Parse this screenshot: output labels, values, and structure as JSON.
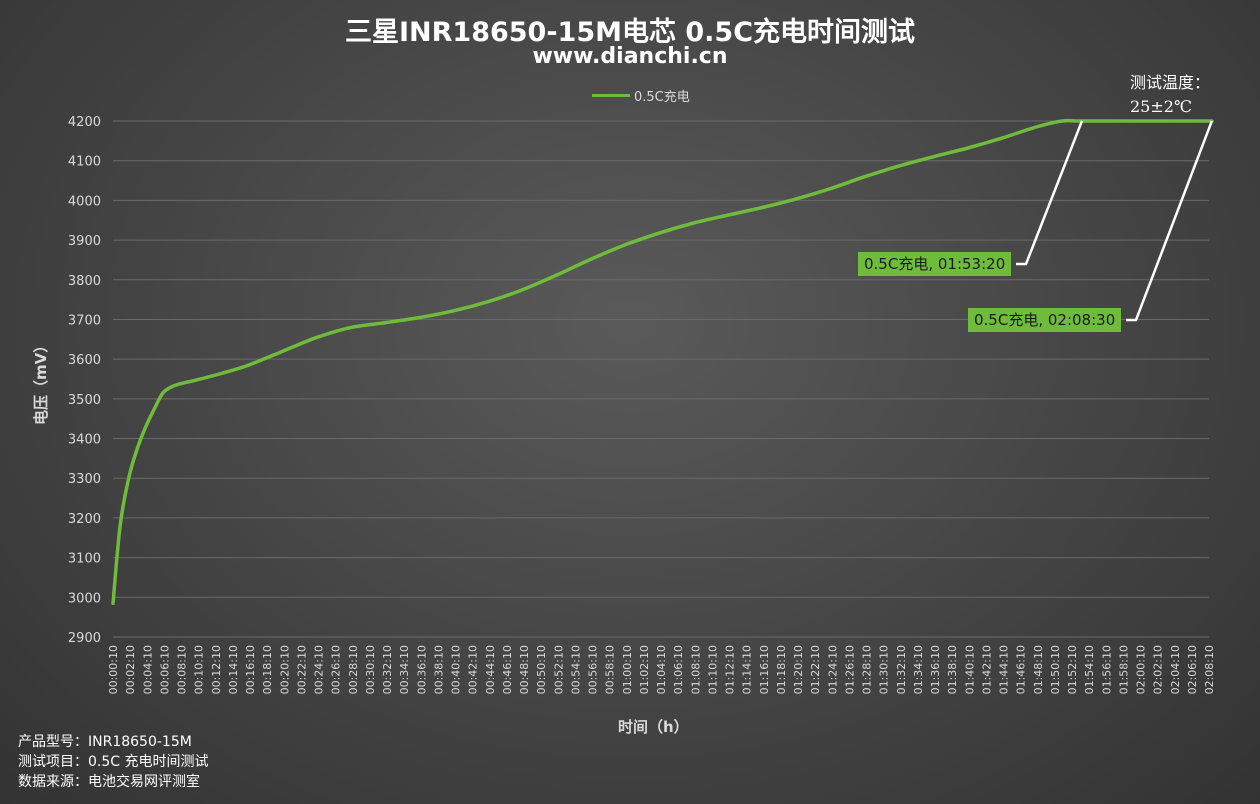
{
  "title": "三星INR18650-15M电芯 0.5C充电时间测试",
  "subtitle": "www.dianchi.cn",
  "legend_label": "0.5C充电",
  "temperature": {
    "line1": "测试温度：",
    "line2": "25±2℃"
  },
  "callouts": [
    "0.5C充电, 01:53:20",
    "0.5C充电, 02:08:30"
  ],
  "footer": {
    "line1": "产品型号：INR18650-15M",
    "line2": "测试项目：0.5C 充电时间测试",
    "line3": "数据来源：电池交易网评测室"
  },
  "colors": {
    "series": "#6fbc3c",
    "grid": "#6a6a6a",
    "connector": "#ffffff"
  },
  "chart_data": {
    "type": "line",
    "title": "三星INR18650-15M电芯 0.5C充电时间测试",
    "xlabel": "时间（h）",
    "ylabel": "电压（mV）",
    "ylim": [
      2900,
      4200
    ],
    "yticks": [
      2900,
      3000,
      3100,
      3200,
      3300,
      3400,
      3500,
      3600,
      3700,
      3800,
      3900,
      4000,
      4100,
      4200
    ],
    "xtick_labels": [
      "00:00:10",
      "00:02:10",
      "00:04:10",
      "00:06:10",
      "00:08:10",
      "00:10:10",
      "00:12:10",
      "00:14:10",
      "00:16:10",
      "00:18:10",
      "00:20:10",
      "00:22:10",
      "00:24:10",
      "00:26:10",
      "00:28:10",
      "00:30:10",
      "00:32:10",
      "00:34:10",
      "00:36:10",
      "00:38:10",
      "00:40:10",
      "00:42:10",
      "00:44:10",
      "00:46:10",
      "00:48:10",
      "00:50:10",
      "00:52:10",
      "00:54:10",
      "00:56:10",
      "00:58:10",
      "01:00:10",
      "01:02:10",
      "01:04:10",
      "01:06:10",
      "01:08:10",
      "01:10:10",
      "01:12:10",
      "01:14:10",
      "01:16:10",
      "01:18:10",
      "01:20:10",
      "01:22:10",
      "01:24:10",
      "01:26:10",
      "01:28:10",
      "01:30:10",
      "01:32:10",
      "01:34:10",
      "01:36:10",
      "01:38:10",
      "01:40:10",
      "01:42:10",
      "01:44:10",
      "01:46:10",
      "01:48:10",
      "01:50:10",
      "01:52:10",
      "01:54:10",
      "01:56:10",
      "01:58:10",
      "02:00:10",
      "02:02:10",
      "02:04:10",
      "02:06:10",
      "02:08:10"
    ],
    "legend_position": "top",
    "grid": true,
    "series": [
      {
        "name": "0.5C充电",
        "x_min": [
          0.17,
          1,
          2,
          3,
          4,
          5,
          6,
          7,
          8,
          10,
          13,
          16,
          20,
          24,
          28,
          32,
          36,
          40,
          44,
          48,
          52,
          56,
          60,
          64,
          68,
          72,
          76,
          80,
          84,
          88,
          92,
          96,
          100,
          104,
          108,
          111,
          113.33,
          120,
          128.5
        ],
        "y_mV": [
          2985,
          3180,
          3300,
          3375,
          3430,
          3475,
          3515,
          3530,
          3538,
          3548,
          3565,
          3585,
          3620,
          3655,
          3680,
          3692,
          3705,
          3722,
          3745,
          3775,
          3812,
          3852,
          3888,
          3918,
          3943,
          3963,
          3982,
          4004,
          4030,
          4060,
          4087,
          4110,
          4132,
          4157,
          4185,
          4200,
          4200,
          4200,
          4200
        ]
      }
    ],
    "annotations": [
      {
        "text": "0.5C充电, 01:53:20",
        "x_min": 113.33,
        "y_mV": 4200
      },
      {
        "text": "0.5C充电, 02:08:30",
        "x_min": 128.5,
        "y_mV": 4200
      }
    ]
  }
}
